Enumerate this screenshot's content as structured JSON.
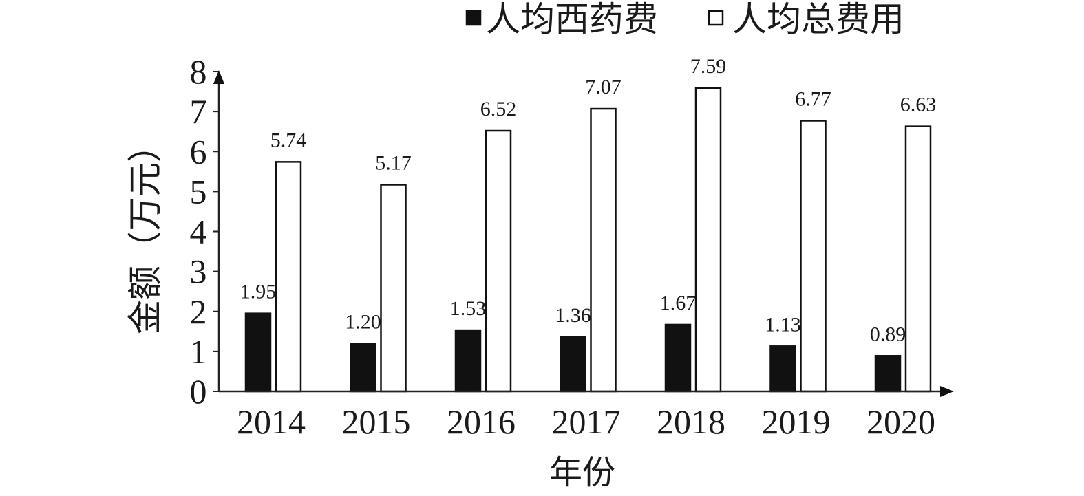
{
  "chart_data": {
    "type": "bar",
    "categories": [
      "2014",
      "2015",
      "2016",
      "2017",
      "2018",
      "2019",
      "2020"
    ],
    "series": [
      {
        "name": "人均西药费",
        "values": [
          1.95,
          1.2,
          1.53,
          1.36,
          1.67,
          1.13,
          0.89
        ],
        "labels": [
          "1.95",
          "1.20",
          "1.53",
          "1.36",
          "1.67",
          "1.13",
          "0.89"
        ],
        "fill": "#111111"
      },
      {
        "name": "人均总费用",
        "values": [
          5.74,
          5.17,
          6.52,
          7.07,
          7.59,
          6.77,
          6.63
        ],
        "labels": [
          "5.74",
          "5.17",
          "6.52",
          "7.07",
          "7.59",
          "6.77",
          "6.63"
        ],
        "fill": "#ffffff"
      }
    ],
    "xlabel": "年份",
    "ylabel": "金额（万元）",
    "ylim": [
      0,
      8
    ],
    "yticks": [
      "0",
      "1",
      "2",
      "3",
      "4",
      "5",
      "6",
      "7",
      "8"
    ],
    "legend": "top",
    "grid": false
  }
}
